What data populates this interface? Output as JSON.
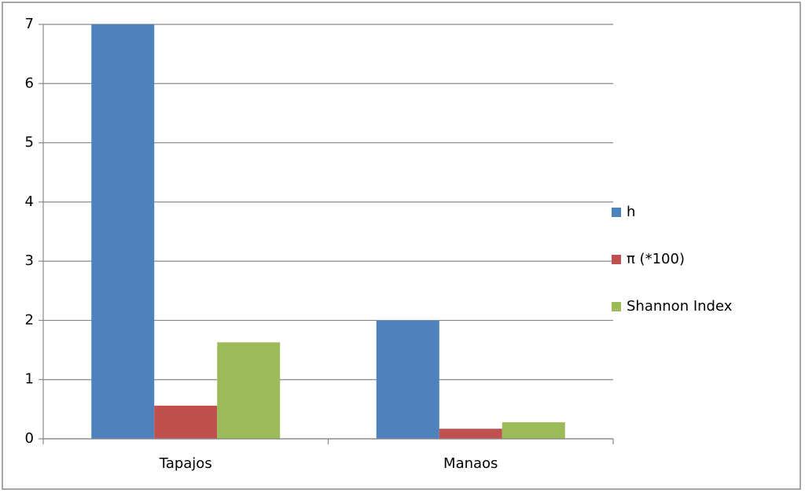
{
  "chart_data": {
    "type": "bar",
    "categories": [
      "Tapajos",
      "Manaos"
    ],
    "series": [
      {
        "name": "h",
        "color": "#4f81bd",
        "values": [
          7,
          2
        ]
      },
      {
        "name": "π (*100)",
        "color": "#c0504d",
        "values": [
          0.56,
          0.17
        ]
      },
      {
        "name": "Shannon Index",
        "color": "#9bbb59",
        "values": [
          1.63,
          0.28
        ]
      }
    ],
    "ylim": [
      0,
      7
    ],
    "yticks": [
      0,
      1,
      2,
      3,
      4,
      5,
      6,
      7
    ],
    "grid": true,
    "legend": "right"
  }
}
